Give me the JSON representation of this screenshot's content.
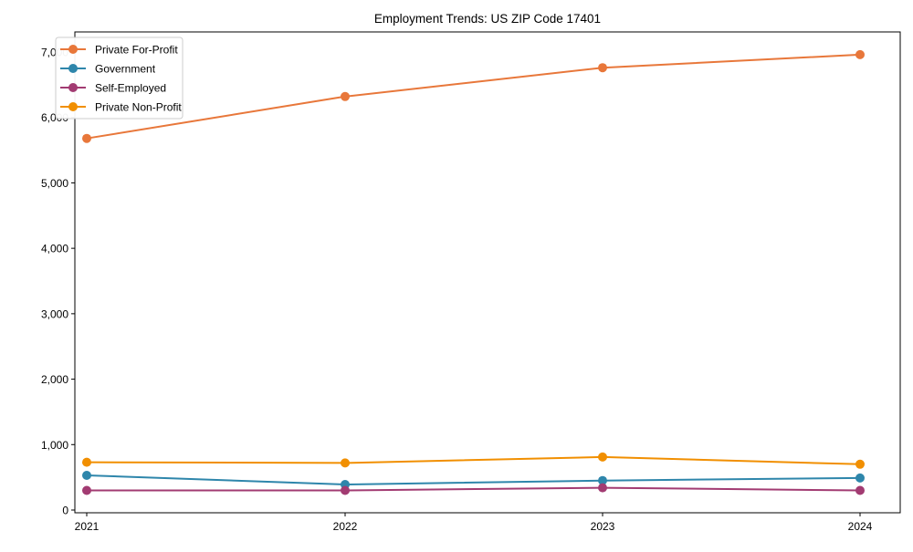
{
  "chart_data": {
    "type": "line",
    "title": "Employment Trends: US ZIP Code 17401",
    "xlabel": "",
    "ylabel": "",
    "categories": [
      "2021",
      "2022",
      "2023",
      "2024"
    ],
    "x": [
      2021,
      2022,
      2023,
      2024
    ],
    "ylim": [
      -50,
      7300
    ],
    "yticks": [
      0,
      1000,
      2000,
      3000,
      4000,
      5000,
      6000,
      7000
    ],
    "ytick_labels": [
      "0",
      "1,000",
      "2,000",
      "3,000",
      "4,000",
      "5,000",
      "6,000",
      "7,000"
    ],
    "grid": false,
    "legend_position": "upper left",
    "series": [
      {
        "name": "Private For-Profit",
        "color": "#e8773a",
        "values": [
          5680,
          6320,
          6760,
          6960
        ]
      },
      {
        "name": "Government",
        "color": "#2e86ab",
        "values": [
          530,
          390,
          450,
          490
        ]
      },
      {
        "name": "Self-Employed",
        "color": "#a23b72",
        "values": [
          300,
          300,
          340,
          300
        ]
      },
      {
        "name": "Private Non-Profit",
        "color": "#f18f01",
        "values": [
          730,
          720,
          810,
          700
        ]
      }
    ]
  }
}
